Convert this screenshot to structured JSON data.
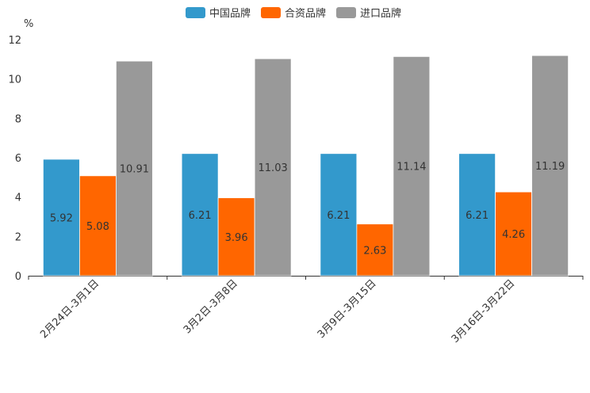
{
  "chart_data": {
    "type": "bar",
    "title": "",
    "ylabel": "%",
    "xlabel": "",
    "ylim": [
      0,
      12
    ],
    "yticks": [
      0,
      2,
      4,
      6,
      8,
      10,
      12
    ],
    "categories": [
      "2月24日-3月1日",
      "3月2日-3月8日",
      "3月9日-3月15日",
      "3月16日-3月22日"
    ],
    "series": [
      {
        "name": "中国品牌",
        "color": "#3399cc",
        "values": [
          5.92,
          6.21,
          6.21,
          6.21
        ]
      },
      {
        "name": "合资品牌",
        "color": "#ff6600",
        "values": [
          5.08,
          3.96,
          2.63,
          4.26
        ]
      },
      {
        "name": "进口品牌",
        "color": "#999999",
        "values": [
          10.91,
          11.03,
          11.14,
          11.19
        ]
      }
    ],
    "legend_position": "top-center",
    "grid": false
  }
}
